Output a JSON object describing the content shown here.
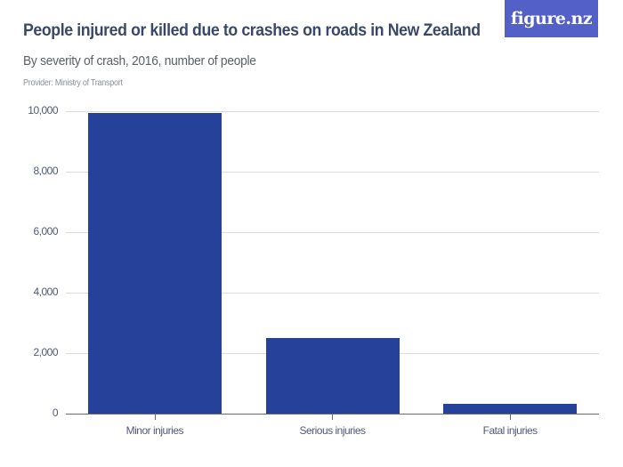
{
  "header": {
    "title": "People injured or killed due to crashes on roads in New Zealand",
    "subtitle": "By severity of crash, 2016, number of people",
    "provider": "Provider: Ministry of Transport",
    "logo_text": "figure.nz",
    "logo_color": "#5360c8"
  },
  "chart_data": {
    "type": "bar",
    "title": "People injured or killed due to crashes on roads in New Zealand",
    "subtitle": "By severity of crash, 2016, number of people",
    "xlabel": "",
    "ylabel": "",
    "categories": [
      "Minor injuries",
      "Serious injuries",
      "Fatal injuries"
    ],
    "values": [
      9950,
      2500,
      327
    ],
    "ylim": [
      0,
      10000
    ],
    "yticks": [
      0,
      2000,
      4000,
      6000,
      8000,
      10000
    ],
    "ytick_labels": [
      "0",
      "2,000",
      "4,000",
      "6,000",
      "8,000",
      "10,000"
    ],
    "grid": true,
    "legend": null,
    "bar_color": "#26419a"
  }
}
